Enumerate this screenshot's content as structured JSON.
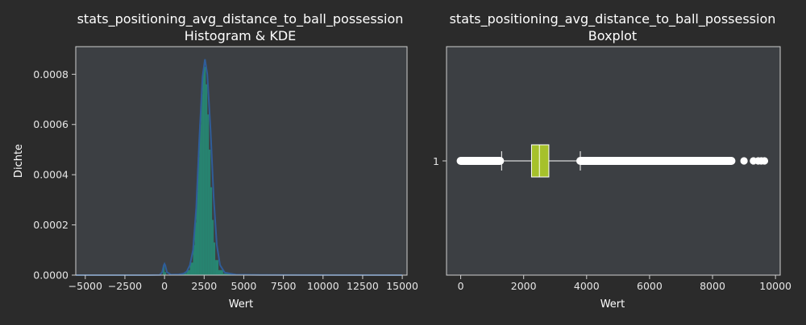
{
  "colors": {
    "figure_bg": "#2b2b2b",
    "axes_bg": "#3c3f43",
    "spine": "#cfcfcf",
    "text": "#ffffff",
    "hist_fill": "#23937a",
    "kde_line": "#2f5d9a",
    "box_fill": "#a6c12b",
    "box_edge": "#ffffff",
    "flier": "#ffffff"
  },
  "chart_data": [
    {
      "type": "histogram",
      "title": "stats_positioning_avg_distance_to_ball_possession",
      "subtitle": "Histogram & KDE",
      "xlabel": "Wert",
      "ylabel": "Dichte",
      "xlim": [
        -5600,
        15300
      ],
      "ylim": [
        0,
        0.00091
      ],
      "xticks": [
        -5000,
        -2500,
        0,
        2500,
        5000,
        7500,
        10000,
        12500,
        15000
      ],
      "xtick_labels": [
        "−5000",
        "−2500",
        "0",
        "2500",
        "5000",
        "7500",
        "10000",
        "12500",
        "15000"
      ],
      "yticks": [
        0,
        0.0002,
        0.0004,
        0.0006,
        0.0008
      ],
      "ytick_labels": [
        "0.0000",
        "0.0002",
        "0.0004",
        "0.0006",
        "0.0008"
      ],
      "bins": [
        [
          -100,
          0,
          4e-05
        ],
        [
          0,
          100,
          1.2e-05
        ],
        [
          1000,
          1200,
          4e-06
        ],
        [
          1200,
          1400,
          8e-06
        ],
        [
          1400,
          1600,
          2e-05
        ],
        [
          1600,
          1800,
          5e-05
        ],
        [
          1800,
          1900,
          0.00012
        ],
        [
          1900,
          2000,
          0.00021
        ],
        [
          2000,
          2100,
          0.00033
        ],
        [
          2100,
          2200,
          0.00047
        ],
        [
          2200,
          2300,
          0.0006
        ],
        [
          2300,
          2400,
          0.00072
        ],
        [
          2400,
          2500,
          0.00081
        ],
        [
          2500,
          2600,
          0.00083
        ],
        [
          2600,
          2700,
          0.00076
        ],
        [
          2700,
          2800,
          0.00064
        ],
        [
          2800,
          2900,
          0.0005
        ],
        [
          2900,
          3000,
          0.00035
        ],
        [
          3000,
          3100,
          0.00022
        ],
        [
          3100,
          3200,
          0.00013
        ],
        [
          3200,
          3400,
          6e-05
        ],
        [
          3400,
          3700,
          2e-05
        ],
        [
          3700,
          4200,
          6e-06
        ]
      ],
      "kde": [
        [
          -5600,
          0
        ],
        [
          -1000,
          0
        ],
        [
          -300,
          1e-06
        ],
        [
          -150,
          1.2e-05
        ],
        [
          -50,
          3.8e-05
        ],
        [
          0,
          4.5e-05
        ],
        [
          50,
          3.8e-05
        ],
        [
          150,
          1.2e-05
        ],
        [
          400,
          2e-06
        ],
        [
          900,
          3e-06
        ],
        [
          1200,
          6e-06
        ],
        [
          1400,
          1.4e-05
        ],
        [
          1600,
          4e-05
        ],
        [
          1800,
          0.0001
        ],
        [
          2000,
          0.00027
        ],
        [
          2200,
          0.00055
        ],
        [
          2400,
          0.00079
        ],
        [
          2550,
          0.00086
        ],
        [
          2700,
          0.0008
        ],
        [
          2900,
          0.00058
        ],
        [
          3100,
          0.00031
        ],
        [
          3300,
          0.00012
        ],
        [
          3500,
          4e-05
        ],
        [
          3800,
          1e-05
        ],
        [
          4500,
          2e-06
        ],
        [
          6000,
          5e-07
        ],
        [
          15000,
          0
        ]
      ]
    },
    {
      "type": "boxplot",
      "title": "stats_positioning_avg_distance_to_ball_possession",
      "subtitle": "Boxplot",
      "xlabel": "Wert",
      "category_label": "1",
      "xlim": [
        -450,
        10150
      ],
      "xticks": [
        0,
        2000,
        4000,
        6000,
        8000,
        10000
      ],
      "xtick_labels": [
        "0",
        "2000",
        "4000",
        "6000",
        "8000",
        "10000"
      ],
      "box": {
        "q1": 2250,
        "median": 2500,
        "q3": 2800,
        "whisker_low": 1300,
        "whisker_high": 3800
      },
      "outlier_segments": [
        [
          0,
          1250
        ],
        [
          3800,
          8600
        ]
      ],
      "outliers": [
        0,
        50,
        120,
        200,
        280,
        360,
        440,
        520,
        600,
        680,
        760,
        840,
        920,
        1000,
        1080,
        1160,
        1240,
        3820,
        3900,
        3980,
        4060,
        4140,
        4220,
        4300,
        4380,
        4460,
        4540,
        4620,
        4700,
        4780,
        4860,
        4940,
        5020,
        5100,
        5180,
        5260,
        5340,
        5420,
        5500,
        5580,
        5660,
        5740,
        5820,
        5900,
        5980,
        6060,
        6140,
        6220,
        6300,
        6380,
        6460,
        6540,
        6620,
        6700,
        6780,
        6860,
        6940,
        7020,
        7100,
        7180,
        7260,
        7340,
        7420,
        7500,
        7580,
        7660,
        7740,
        7820,
        7900,
        7980,
        8060,
        8140,
        8220,
        8300,
        8380,
        8460,
        8540,
        8600,
        9000,
        9300,
        9450,
        9550,
        9650
      ]
    }
  ]
}
